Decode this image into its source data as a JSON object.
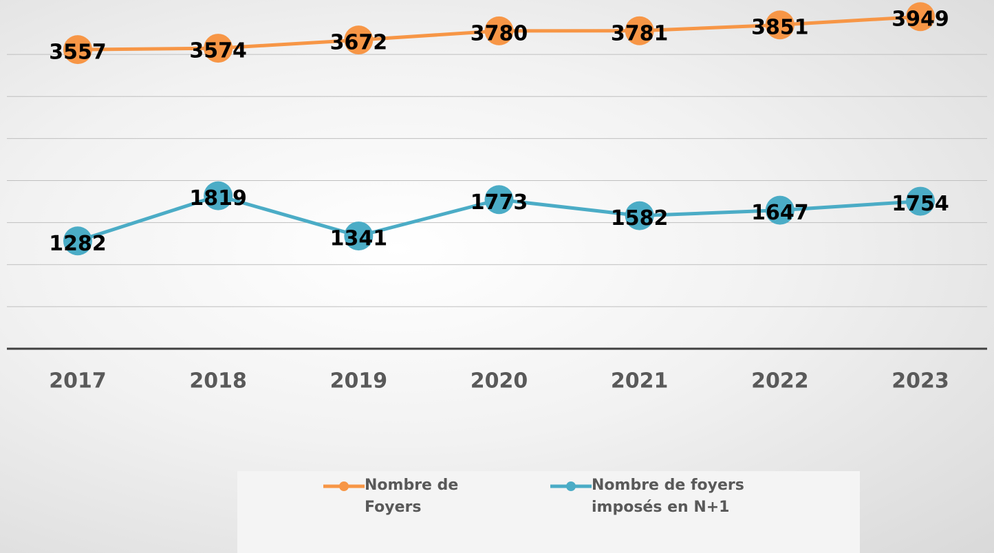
{
  "chart_data": {
    "type": "line",
    "categories": [
      "2017",
      "2018",
      "2019",
      "2020",
      "2021",
      "2022",
      "2023"
    ],
    "series": [
      {
        "name": "Nombre de Foyers",
        "color": "#f79646",
        "values": [
          3557,
          3574,
          3672,
          3780,
          3781,
          3851,
          3949
        ]
      },
      {
        "name": "Nombre de foyers imposés en N+1",
        "color": "#4bacc6",
        "values": [
          1282,
          1819,
          1341,
          1773,
          1582,
          1647,
          1754
        ]
      }
    ],
    "ylim": [
      0,
      4000
    ],
    "yticks": [
      0,
      500,
      1000,
      1500,
      2000,
      2500,
      3000,
      3500
    ],
    "grid": true,
    "legend": "bottom"
  }
}
